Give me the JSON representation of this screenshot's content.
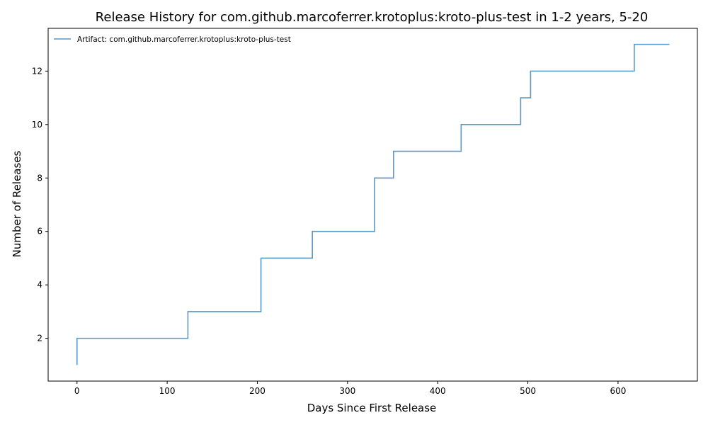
{
  "chart_data": {
    "type": "line",
    "step": "post",
    "title": "Release History for com.github.marcoferrer.krotoplus:kroto-plus-test in 1-2 years, 5-20",
    "xlabel": "Days Since First Release",
    "ylabel": "Number of Releases",
    "xlim": [
      -32,
      688
    ],
    "ylim": [
      0.4,
      13.6
    ],
    "xticks": [
      0,
      100,
      200,
      300,
      400,
      500,
      600
    ],
    "yticks": [
      2,
      4,
      6,
      8,
      10,
      12
    ],
    "grid": false,
    "legend_position": "top-left",
    "series": [
      {
        "name": "Artifact: com.github.marcoferrer.krotoplus:kroto-plus-test",
        "color": "#1f77b4",
        "x": [
          0,
          0,
          123,
          204,
          261,
          330,
          351,
          426,
          492,
          503,
          618,
          657
        ],
        "y": [
          1,
          2,
          3,
          5,
          6,
          8,
          9,
          10,
          11,
          12,
          13,
          13
        ]
      }
    ]
  }
}
